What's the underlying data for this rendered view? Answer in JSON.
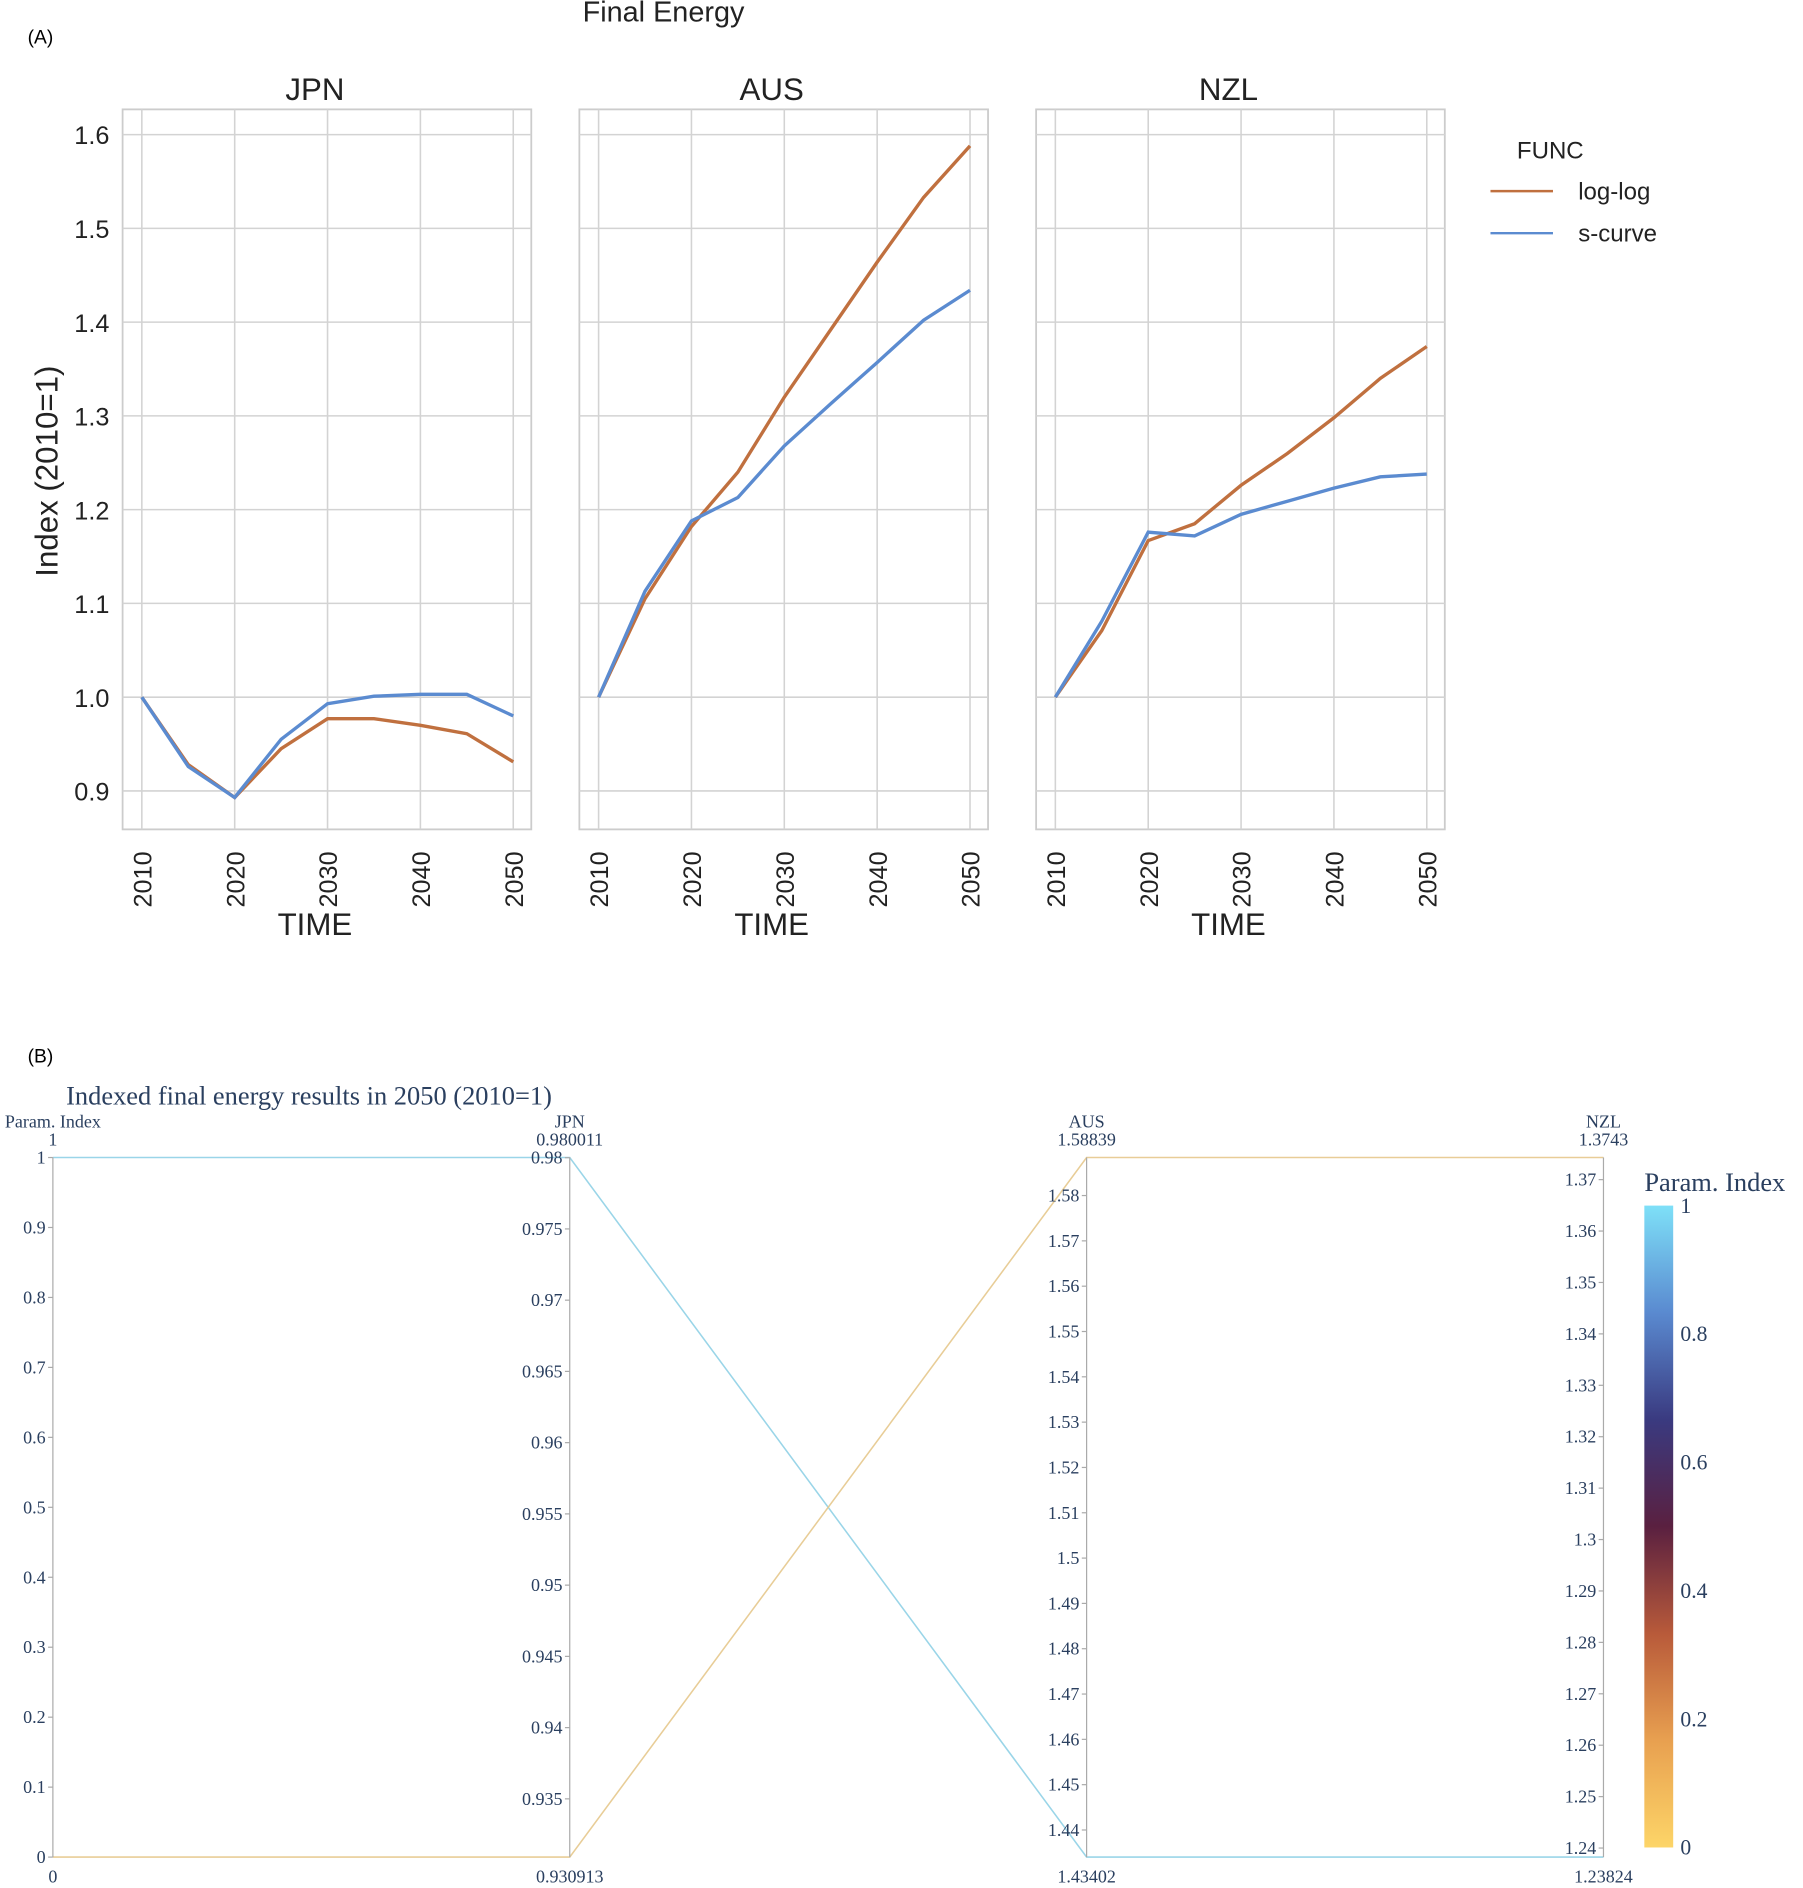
{
  "panel_a": {
    "label": "(A)",
    "chart_data": {
      "type": "line",
      "title": "Final Energy",
      "xlabel": "TIME",
      "ylabel": "Index (2010=1)",
      "x": [
        2010,
        2015,
        2020,
        2025,
        2030,
        2035,
        2040,
        2045,
        2050
      ],
      "x_ticks": [
        "2010",
        "2020",
        "2030",
        "2040",
        "2050"
      ],
      "y_ticks": [
        "0.9",
        "1.0",
        "1.1",
        "1.2",
        "1.3",
        "1.4",
        "1.5",
        "1.6"
      ],
      "ylim": [
        0.86,
        1.625
      ],
      "grid": true,
      "legend": {
        "title": "FUNC",
        "position": "right",
        "entries": [
          "log-log",
          "s-curve"
        ]
      },
      "colors": {
        "log-log": "#c0703f",
        "s-curve": "#5b8bd0"
      },
      "facets": [
        {
          "name": "JPN",
          "series": [
            {
              "name": "log-log",
              "values": [
                1.0,
                0.928,
                0.893,
                0.945,
                0.977,
                0.977,
                0.97,
                0.961,
                0.931
              ]
            },
            {
              "name": "s-curve",
              "values": [
                1.0,
                0.926,
                0.893,
                0.955,
                0.993,
                1.001,
                1.003,
                1.003,
                0.98
              ]
            }
          ]
        },
        {
          "name": "AUS",
          "series": [
            {
              "name": "log-log",
              "values": [
                1.0,
                1.105,
                1.182,
                1.24,
                1.32,
                1.392,
                1.464,
                1.533,
                1.588
              ]
            },
            {
              "name": "s-curve",
              "values": [
                1.0,
                1.113,
                1.188,
                1.213,
                1.268,
                1.313,
                1.357,
                1.402,
                1.434
              ]
            }
          ]
        },
        {
          "name": "NZL",
          "series": [
            {
              "name": "log-log",
              "values": [
                1.0,
                1.071,
                1.167,
                1.185,
                1.226,
                1.26,
                1.298,
                1.34,
                1.374
              ]
            },
            {
              "name": "s-curve",
              "values": [
                1.0,
                1.081,
                1.176,
                1.172,
                1.195,
                1.209,
                1.223,
                1.235,
                1.238
              ]
            }
          ]
        }
      ]
    }
  },
  "panel_b": {
    "label": "(B)",
    "chart_data": {
      "type": "parcoords",
      "title": "Indexed final energy results in 2050 (2010=1)",
      "dimensions": [
        {
          "label": "Param. Index",
          "range": [
            0,
            1
          ],
          "max_label": "1",
          "min_label": "0",
          "ticks": [
            "0",
            "0.1",
            "0.2",
            "0.3",
            "0.4",
            "0.5",
            "0.6",
            "0.7",
            "0.8",
            "0.9",
            "1"
          ]
        },
        {
          "label": "JPN",
          "range": [
            0.930913,
            0.980011
          ],
          "max_label": "0.980011",
          "min_label": "0.930913",
          "ticks": [
            "0.935",
            "0.94",
            "0.945",
            "0.95",
            "0.955",
            "0.96",
            "0.965",
            "0.97",
            "0.975",
            "0.98"
          ]
        },
        {
          "label": "AUS",
          "range": [
            1.43402,
            1.58839
          ],
          "max_label": "1.58839",
          "min_label": "1.43402",
          "ticks": [
            "1.44",
            "1.45",
            "1.46",
            "1.47",
            "1.48",
            "1.49",
            "1.5",
            "1.51",
            "1.52",
            "1.53",
            "1.54",
            "1.55",
            "1.56",
            "1.57",
            "1.58"
          ]
        },
        {
          "label": "NZL",
          "range": [
            1.23824,
            1.3743
          ],
          "max_label": "1.3743",
          "min_label": "1.23824",
          "ticks": [
            "1.24",
            "1.25",
            "1.26",
            "1.27",
            "1.28",
            "1.29",
            "1.3",
            "1.31",
            "1.32",
            "1.33",
            "1.34",
            "1.35",
            "1.36",
            "1.37"
          ]
        }
      ],
      "lines": [
        {
          "values": [
            1,
            0.980011,
            1.43402,
            1.23824
          ]
        },
        {
          "values": [
            0,
            0.930913,
            1.58839,
            1.3743
          ]
        }
      ],
      "colorbar": {
        "title": "Param. Index",
        "ticks": [
          "0",
          "0.2",
          "0.4",
          "0.6",
          "0.8",
          "1"
        ],
        "colorscale": [
          "#fdd568",
          "#e8a050",
          "#b85a3a",
          "#5a2040",
          "#3a3a80",
          "#5a8ad0",
          "#7ee0f8"
        ]
      }
    }
  }
}
